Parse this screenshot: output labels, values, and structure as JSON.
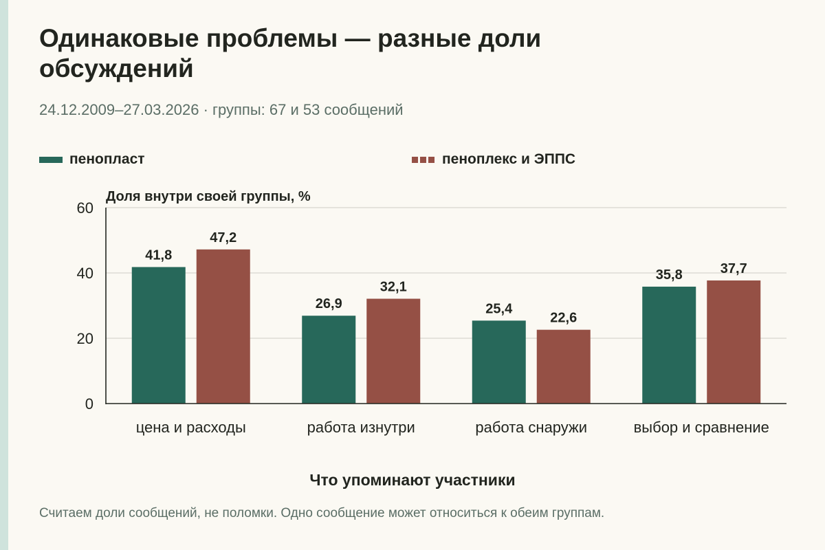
{
  "title": "Одинаковые проблемы — разные доли обсуждений",
  "subtitle": "24.12.2009–27.03.2026 · группы: 67 и 53 сообщений",
  "footnote": "Считаем доли сообщений, не поломки. Одно сообщение может относиться к обеим группам.",
  "colors": {
    "background": "#fbf9f3",
    "accent_stripe": "#cfe3dc",
    "series_0": "#27685a",
    "series_1": "#955045",
    "grid": "#d8d6cf",
    "axis": "#22251f"
  },
  "chart_data": {
    "type": "bar",
    "categories": [
      "цена и расходы",
      "работа изнутри",
      "работа снаружи",
      "выбор и сравнение"
    ],
    "series": [
      {
        "name": "пенопласт",
        "values": [
          41.8,
          26.9,
          25.4,
          35.8
        ],
        "labels": [
          "41,8",
          "26,9",
          "25,4",
          "35,8"
        ]
      },
      {
        "name": "пеноплекс и ЭППС",
        "values": [
          47.2,
          32.1,
          22.6,
          37.7
        ],
        "labels": [
          "47,2",
          "32,1",
          "22,6",
          "37,7"
        ]
      }
    ],
    "ylabel": "Доля внутри своей группы, %",
    "xlabel": "Что упоминают участники",
    "ylim": [
      0,
      60
    ],
    "yticks": [
      0,
      20,
      40,
      60
    ],
    "grid": true,
    "legend_position": "top"
  }
}
